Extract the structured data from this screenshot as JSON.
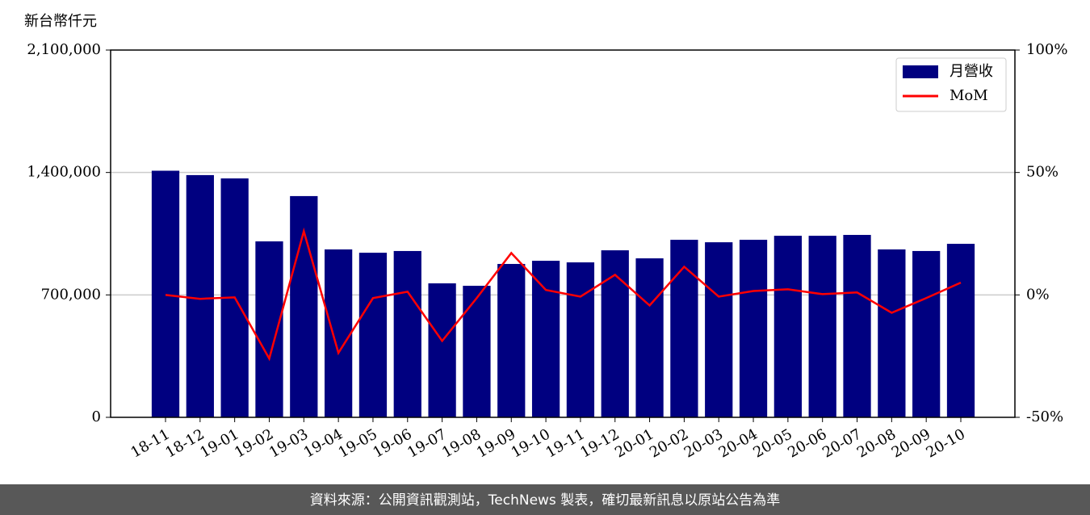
{
  "chart_data": {
    "type": "bar_line",
    "y_label": "新台幣仟元",
    "footer": "資料來源：公開資訊觀測站，TechNews 製表，確切最新訊息以原站公告為準",
    "categories": [
      "18-11",
      "18-12",
      "19-01",
      "19-02",
      "19-03",
      "19-04",
      "19-05",
      "19-06",
      "19-07",
      "19-08",
      "19-09",
      "19-10",
      "19-11",
      "19-12",
      "20-01",
      "20-02",
      "20-03",
      "20-04",
      "20-05",
      "20-06",
      "20-07",
      "20-08",
      "20-09",
      "20-10"
    ],
    "series": [
      {
        "name": "月營收",
        "type": "bar",
        "color": "#000080",
        "values": [
          1410000,
          1385000,
          1366000,
          1006000,
          1265000,
          960000,
          941000,
          951000,
          766000,
          752000,
          877000,
          895000,
          886000,
          955000,
          909000,
          1015000,
          1001000,
          1015000,
          1038000,
          1038000,
          1043000,
          960000,
          951000,
          992000
        ]
      },
      {
        "name": "MoM",
        "type": "line",
        "axis": "y2",
        "color": "#ff0000",
        "values": [
          0,
          -1.6,
          -1.0,
          -26,
          26,
          -23.7,
          -1.3,
          1.3,
          -18.8,
          -1.3,
          17.1,
          2,
          -0.7,
          8.2,
          -4.3,
          11.5,
          -0.7,
          1.6,
          2.3,
          0.3,
          1,
          -7.3,
          -1.3,
          5
        ]
      }
    ],
    "ylim": [
      0,
      2100000
    ],
    "yticks": [
      0,
      {
        "value": 700000,
        "label": "700,000"
      },
      {
        "value": 1400000,
        "label": "1,400,000"
      },
      {
        "value": 2100000,
        "label": "2,100,000"
      }
    ],
    "y2lim": [
      -50,
      100
    ],
    "y2ticks": [
      {
        "value": -50,
        "label": "-50%"
      },
      {
        "value": 0,
        "label": "0%"
      },
      {
        "value": 50,
        "label": "50%"
      },
      {
        "value": 100,
        "label": "100%"
      }
    ],
    "grid": true,
    "legend": "upper right"
  }
}
